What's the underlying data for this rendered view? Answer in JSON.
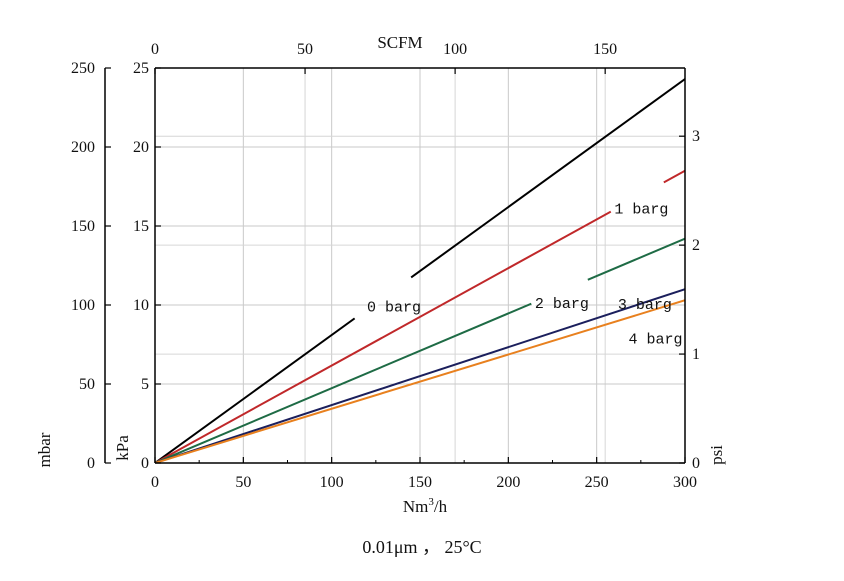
{
  "chart_data": {
    "type": "line",
    "x": [
      0,
      300
    ],
    "xlim": [
      0,
      300
    ],
    "x_ticks": [
      "0",
      "50",
      "100",
      "150",
      "200",
      "250",
      "300"
    ],
    "xlabel_base": "Nm",
    "xlabel_sup": "3",
    "xlabel_tail": "/h",
    "top_axis": {
      "label": "SCFM",
      "ticks": [
        "0",
        "50",
        "100",
        "150"
      ],
      "values": [
        0,
        50,
        100,
        150
      ],
      "max": 176.6
    },
    "kpa_axis": {
      "label": "kPa",
      "ticks": [
        "0",
        "5",
        "10",
        "15",
        "20",
        "25"
      ],
      "lim": [
        0,
        25
      ]
    },
    "mbar_axis": {
      "label": "mbar",
      "ticks": [
        "0",
        "50",
        "100",
        "150",
        "200",
        "250"
      ]
    },
    "psi_axis": {
      "label": "psi",
      "ticks": [
        "0",
        "1",
        "2",
        "3"
      ],
      "values": [
        0,
        1,
        2,
        3
      ],
      "max": 3.626
    },
    "grid": true,
    "series": [
      {
        "name": "0 barg",
        "color": "#000000",
        "kpa_at_300": 24.3
      },
      {
        "name": "1 barg",
        "color": "#c0282a",
        "kpa_at_300": 18.5
      },
      {
        "name": "2 barg",
        "color": "#1e6b45",
        "kpa_at_300": 14.2
      },
      {
        "name": "3 barg",
        "color": "#1b1f5c",
        "kpa_at_300": 11.0
      },
      {
        "name": "4 barg",
        "color": "#e8801e",
        "kpa_at_300": 10.3
      }
    ]
  },
  "caption": "0.01μm ， 25°C"
}
